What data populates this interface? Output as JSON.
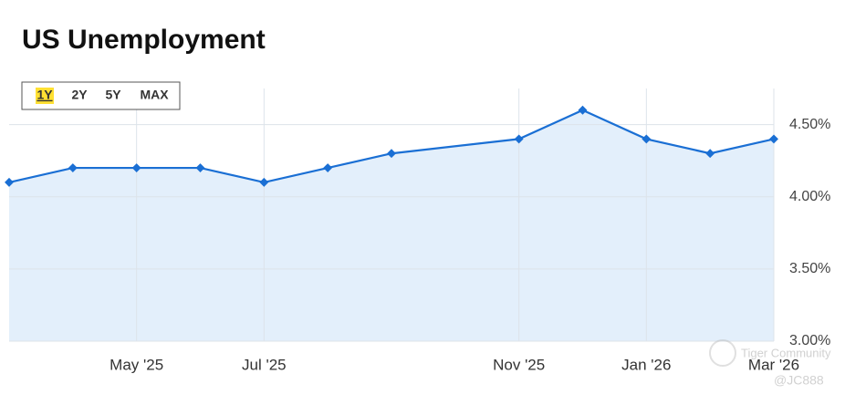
{
  "chart_data": {
    "type": "line",
    "title": "US Unemployment",
    "x": [
      "2025-03",
      "2025-04",
      "2025-05",
      "2025-06",
      "2025-07",
      "2025-08",
      "2025-09",
      "2025-11",
      "2025-12",
      "2026-01",
      "2026-02",
      "2026-03"
    ],
    "series": [
      {
        "color": "#1a6fd4",
        "fill": "#e3effb",
        "values": [
          4.1,
          4.2,
          4.2,
          4.2,
          4.1,
          4.2,
          4.3,
          4.4,
          4.6,
          4.4,
          4.3,
          4.4
        ]
      }
    ],
    "xlim": [
      "2025-03",
      "2026-03"
    ],
    "xticks": [
      {
        "value": "2025-05",
        "label": "May '25"
      },
      {
        "value": "2025-07",
        "label": "Jul '25"
      },
      {
        "value": "2025-11",
        "label": "Nov '25"
      },
      {
        "value": "2026-01",
        "label": "Jan '26"
      },
      {
        "value": "2026-03",
        "label": "Mar '26"
      }
    ],
    "ylim": [
      3,
      4.75
    ],
    "yticks": [
      {
        "value": 3,
        "label": "3.00%"
      },
      {
        "value": 3.5,
        "label": "3.50%"
      },
      {
        "value": 4,
        "label": "4.00%"
      },
      {
        "value": 4.5,
        "label": "4.50%"
      }
    ],
    "grid": true
  },
  "range_buttons": [
    "1Y",
    "2Y",
    "5Y",
    "MAX"
  ],
  "selected_range_index": 0,
  "watermark": [
    "Tiger Community",
    "@JC888"
  ]
}
